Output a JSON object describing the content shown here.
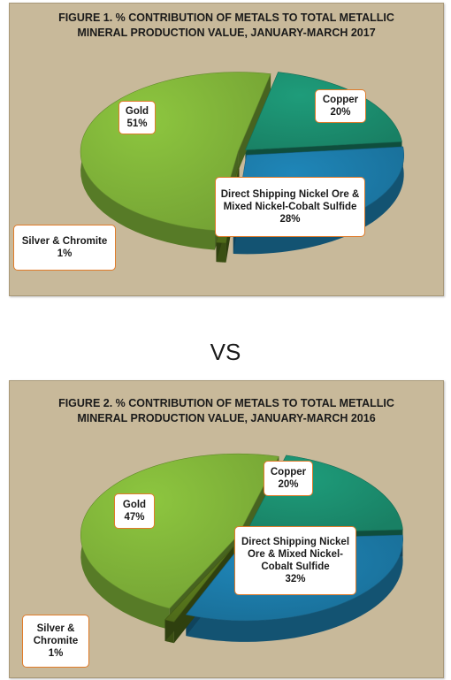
{
  "vs_label": "VS",
  "chart_data": [
    {
      "type": "pie",
      "title_lines": [
        "FIGURE 1.  % CONTRIBUTION OF METALS  TO TOTAL METALLIC",
        "MINERAL PRODUCTION VALUE, JANUARY-MARCH 2017"
      ],
      "slices": [
        {
          "label": "Copper",
          "value_label": "20%",
          "value": 20,
          "color": "#1e9c7a"
        },
        {
          "label": "Direct Shipping Nickel Ore & Mixed Nickel-Cobalt Sulfide",
          "label_lines": [
            "Direct Shipping Nickel Ore &",
            "Mixed Nickel-Cobalt Sulfide"
          ],
          "value_label": "28%",
          "value": 28,
          "color": "#1f86b8"
        },
        {
          "label": "Silver & Chromite",
          "label_lines": [
            "Silver & Chromite"
          ],
          "value_label": "1%",
          "value": 1,
          "color": "#5e7f1e"
        },
        {
          "label": "Gold",
          "value_label": "51%",
          "value": 51,
          "color": "#8dc63f"
        }
      ]
    },
    {
      "type": "pie",
      "title_lines": [
        "FIGURE 2.  % CONTRIBUTION OF METALS  TO TOTAL METALLIC",
        "MINERAL PRODUCTION VALUE, JANUARY-MARCH 2016"
      ],
      "slices": [
        {
          "label": "Copper",
          "value_label": "20%",
          "value": 20,
          "color": "#1e9c7a"
        },
        {
          "label": "Direct Shipping Nickel Ore & Mixed Nickel-Cobalt Sulfide",
          "label_lines": [
            "Direct Shipping Nickel",
            "Ore & Mixed Nickel-",
            "Cobalt Sulfide"
          ],
          "value_label": "32%",
          "value": 32,
          "color": "#1f86b8"
        },
        {
          "label": "Silver & Chromite",
          "label_lines": [
            "Silver &",
            "Chromite"
          ],
          "value_label": "1%",
          "value": 1,
          "color": "#5e7f1e"
        },
        {
          "label": "Gold",
          "value_label": "47%",
          "value": 47,
          "color": "#8dc63f"
        }
      ]
    }
  ]
}
